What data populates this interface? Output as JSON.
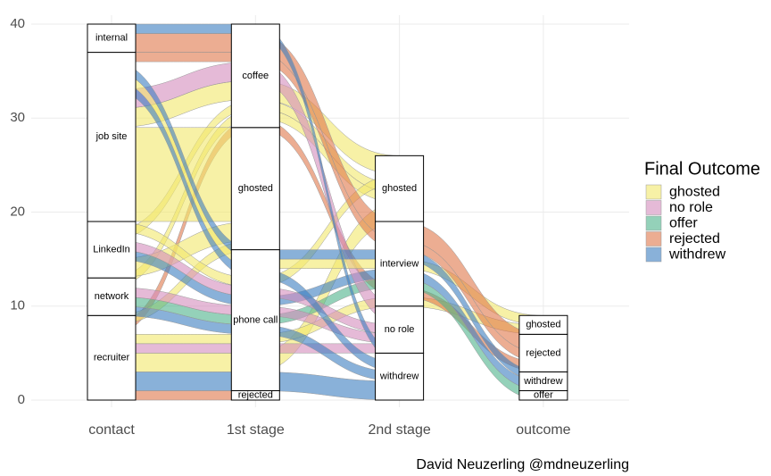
{
  "chart_data": {
    "type": "alluvial",
    "caption": "David Neuzerling @mdneuzerling",
    "ylim": [
      0,
      40
    ],
    "yticks": [
      0,
      10,
      20,
      30,
      40
    ],
    "grid": true,
    "legend": {
      "title": "Final Outcome",
      "position": "right",
      "items": [
        {
          "name": "ghosted",
          "color": "#f2e86b"
        },
        {
          "name": "no role",
          "color": "#d48cbd"
        },
        {
          "name": "offer",
          "color": "#4db38a"
        },
        {
          "name": "rejected",
          "color": "#e0774a"
        },
        {
          "name": "withdrew",
          "color": "#3a7dbf"
        }
      ]
    },
    "axes": [
      {
        "name": "contact",
        "strata": [
          {
            "label": "recruiter",
            "count": 9
          },
          {
            "label": "network",
            "count": 4
          },
          {
            "label": "LinkedIn",
            "count": 6
          },
          {
            "label": "job site",
            "count": 18
          },
          {
            "label": "internal",
            "count": 3
          }
        ]
      },
      {
        "name": "1st stage",
        "strata": [
          {
            "label": "rejected",
            "count": 1
          },
          {
            "label": "phone call",
            "count": 15
          },
          {
            "label": "ghosted",
            "count": 13
          },
          {
            "label": "coffee",
            "count": 11
          }
        ]
      },
      {
        "name": "2nd stage",
        "strata": [
          {
            "label": "withdrew",
            "count": 5
          },
          {
            "label": "no role",
            "count": 5
          },
          {
            "label": "interview",
            "count": 9
          },
          {
            "label": "ghosted",
            "count": 7
          }
        ]
      },
      {
        "name": "outcome",
        "strata": [
          {
            "label": "offer",
            "count": 1
          },
          {
            "label": "withdrew",
            "count": 2
          },
          {
            "label": "rejected",
            "count": 4
          },
          {
            "label": "ghosted",
            "count": 2
          }
        ]
      }
    ],
    "alluvia": [
      {
        "path": [
          "recruiter",
          "rejected",
          null,
          null
        ],
        "outcome": "rejected",
        "count": 1
      },
      {
        "path": [
          "recruiter",
          "phone call",
          "withdrew",
          null
        ],
        "outcome": "withdrew",
        "count": 2
      },
      {
        "path": [
          "recruiter",
          "phone call",
          "ghosted",
          null
        ],
        "outcome": "ghosted",
        "count": 2
      },
      {
        "path": [
          "recruiter",
          "phone call",
          "no role",
          null
        ],
        "outcome": "no role",
        "count": 1
      },
      {
        "path": [
          "recruiter",
          "phone call",
          "interview",
          "ghosted"
        ],
        "outcome": "ghosted",
        "count": 1
      },
      {
        "path": [
          "recruiter",
          "coffee",
          "interview",
          "rejected"
        ],
        "outcome": "rejected",
        "count": 1
      },
      {
        "path": [
          "recruiter",
          "ghosted",
          null,
          null
        ],
        "outcome": "ghosted",
        "count": 1
      },
      {
        "path": [
          "network",
          "phone call",
          "withdrew",
          null
        ],
        "outcome": "withdrew",
        "count": 1
      },
      {
        "path": [
          "network",
          "phone call",
          "interview",
          "offer"
        ],
        "outcome": "offer",
        "count": 1
      },
      {
        "path": [
          "network",
          "phone call",
          "no role",
          null
        ],
        "outcome": "no role",
        "count": 1
      },
      {
        "path": [
          "network",
          "coffee",
          "ghosted",
          null
        ],
        "outcome": "ghosted",
        "count": 1
      },
      {
        "path": [
          "LinkedIn",
          "ghosted",
          null,
          null
        ],
        "outcome": "ghosted",
        "count": 2
      },
      {
        "path": [
          "LinkedIn",
          "phone call",
          "interview",
          "withdrew"
        ],
        "outcome": "withdrew",
        "count": 1
      },
      {
        "path": [
          "LinkedIn",
          "phone call",
          "no role",
          null
        ],
        "outcome": "no role",
        "count": 1
      },
      {
        "path": [
          "LinkedIn",
          "coffee",
          "ghosted",
          null
        ],
        "outcome": "ghosted",
        "count": 1
      },
      {
        "path": [
          "LinkedIn",
          "phone call",
          "ghosted",
          null
        ],
        "outcome": "ghosted",
        "count": 1
      },
      {
        "path": [
          "job site",
          "ghosted",
          null,
          null
        ],
        "outcome": "ghosted",
        "count": 10
      },
      {
        "path": [
          "job site",
          "coffee",
          "ghosted",
          null
        ],
        "outcome": "ghosted",
        "count": 2
      },
      {
        "path": [
          "job site",
          "coffee",
          "no role",
          null
        ],
        "outcome": "no role",
        "count": 2
      },
      {
        "path": [
          "job site",
          "phone call",
          "withdrew",
          null
        ],
        "outcome": "withdrew",
        "count": 1
      },
      {
        "path": [
          "job site",
          "phone call",
          "interview",
          "ghosted"
        ],
        "outcome": "ghosted",
        "count": 1
      },
      {
        "path": [
          "job site",
          "phone call",
          "interview",
          "withdrew"
        ],
        "outcome": "withdrew",
        "count": 1
      },
      {
        "path": [
          "job site",
          "coffee",
          "interview",
          "rejected"
        ],
        "outcome": "rejected",
        "count": 1
      },
      {
        "path": [
          "internal",
          "coffee",
          "interview",
          "rejected"
        ],
        "outcome": "rejected",
        "count": 2
      },
      {
        "path": [
          "internal",
          "coffee",
          "withdrew",
          null
        ],
        "outcome": "withdrew",
        "count": 1
      }
    ]
  }
}
